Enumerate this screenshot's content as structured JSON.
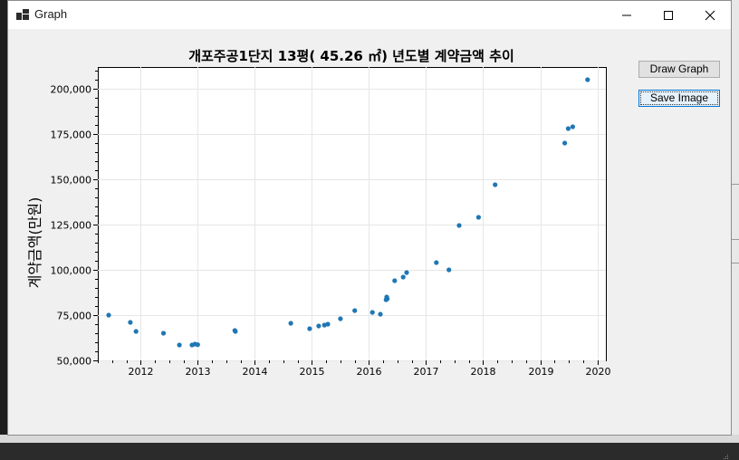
{
  "window": {
    "title": "Graph",
    "icon": "app-window-icon",
    "controls": [
      "minimize-icon",
      "maximize-icon",
      "close-icon"
    ]
  },
  "buttons": {
    "draw_label": "Draw Graph",
    "save_label": "Save Image"
  },
  "chart_data": {
    "type": "scatter",
    "title": "개포주공1단지 13평( 45.26 ㎡) 년도별 계약금액 추이",
    "xlabel": "",
    "ylabel": "계약금액(만원)",
    "xlim": [
      2011.25,
      2020.15
    ],
    "ylim": [
      50000,
      212000
    ],
    "x_ticks": [
      2012,
      2013,
      2014,
      2015,
      2016,
      2017,
      2018,
      2019,
      2020
    ],
    "x_tick_labels": [
      "2012",
      "2013",
      "2014",
      "2015",
      "2016",
      "2017",
      "2018",
      "2019",
      "2020"
    ],
    "y_ticks": [
      50000,
      75000,
      100000,
      125000,
      150000,
      175000,
      200000
    ],
    "y_tick_labels": [
      "50,000",
      "75,000",
      "100,000",
      "125,000",
      "150,000",
      "175,000",
      "200,000"
    ],
    "grid": true,
    "legend": "none",
    "marker_color": "#1f77b4",
    "points": [
      [
        2011.44,
        75000
      ],
      [
        2011.82,
        71000
      ],
      [
        2011.92,
        66000
      ],
      [
        2012.4,
        65000
      ],
      [
        2012.68,
        58500
      ],
      [
        2012.9,
        58500
      ],
      [
        2012.95,
        59000
      ],
      [
        2013.0,
        58700
      ],
      [
        2013.65,
        66500
      ],
      [
        2013.66,
        66000
      ],
      [
        2014.63,
        70500
      ],
      [
        2014.96,
        67500
      ],
      [
        2015.12,
        69000
      ],
      [
        2015.22,
        69500
      ],
      [
        2015.28,
        70000
      ],
      [
        2015.5,
        73000
      ],
      [
        2015.75,
        77500
      ],
      [
        2016.06,
        76500
      ],
      [
        2016.2,
        75500
      ],
      [
        2016.3,
        83500
      ],
      [
        2016.31,
        85000
      ],
      [
        2016.32,
        84000
      ],
      [
        2016.45,
        94000
      ],
      [
        2016.6,
        96000
      ],
      [
        2016.66,
        98500
      ],
      [
        2017.18,
        104000
      ],
      [
        2017.4,
        100000
      ],
      [
        2017.58,
        124500
      ],
      [
        2017.92,
        129000
      ],
      [
        2018.21,
        147000
      ],
      [
        2019.43,
        170000
      ],
      [
        2019.49,
        178000
      ],
      [
        2019.57,
        179000
      ],
      [
        2019.83,
        205000
      ]
    ]
  }
}
